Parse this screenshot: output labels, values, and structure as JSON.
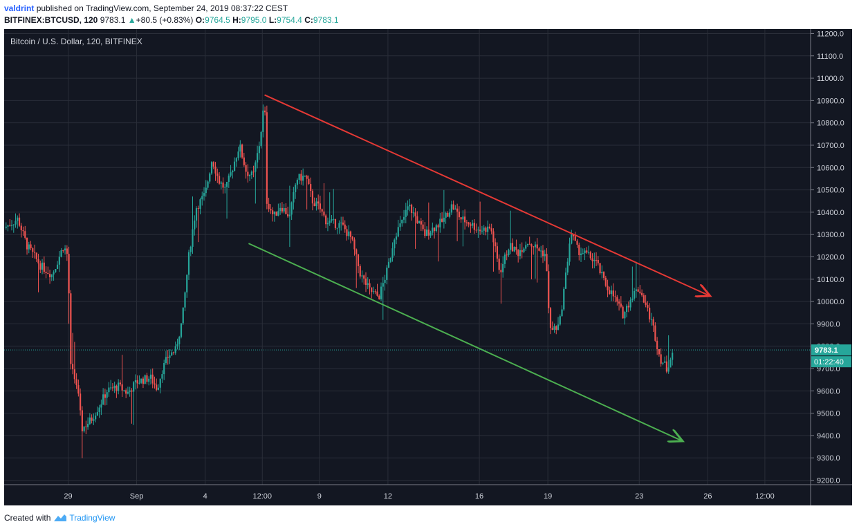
{
  "header": {
    "author": "valdrint",
    "published_text": "published on TradingView.com, September 24, 2019 08:37:22 CEST",
    "symbol": "BITFINEX:BTCUSD, 120",
    "last": "9783.1",
    "change": "+80.5 (+0.83%)",
    "open_label": "O:",
    "open": "9764.5",
    "high_label": "H:",
    "high": "9795.0",
    "low_label": "L:",
    "low": "9754.4",
    "close_label": "C:",
    "close": "9783.1"
  },
  "footer": {
    "created_with": "Created with",
    "brand": "TradingView"
  },
  "colors": {
    "background": "#131722",
    "grid": "#2a2e39",
    "up": "#26a69a",
    "down": "#ef5350",
    "upper_trend": "#e53935",
    "lower_trend": "#4caf50",
    "axis_text": "#d1d4dc",
    "price_tag": "#26a69a"
  },
  "chart_data": {
    "type": "candlestick",
    "title": "Bitcoin / U.S. Dollar, 120, BITFINEX",
    "y_ticks": [
      9200,
      9300,
      9400,
      9500,
      9600,
      9700,
      9800,
      9900,
      10000,
      10100,
      10200,
      10300,
      10400,
      10500,
      10600,
      10700,
      10800,
      10900,
      11000,
      11100,
      11200
    ],
    "x_ticks": [
      {
        "label": "29",
        "day": -3
      },
      {
        "label": "Sep",
        "day": 0
      },
      {
        "label": "4",
        "day": 3
      },
      {
        "label": "12:00",
        "day": 5.5
      },
      {
        "label": "9",
        "day": 8
      },
      {
        "label": "12",
        "day": 11
      },
      {
        "label": "16",
        "day": 15
      },
      {
        "label": "19",
        "day": 18
      },
      {
        "label": "23",
        "day": 22
      },
      {
        "label": "26",
        "day": 25
      },
      {
        "label": "12:00",
        "day": 27.5
      }
    ],
    "ylim": [
      9180,
      11220
    ],
    "xlim": [
      -5.8,
      29.5
    ],
    "last_price": "9783.1",
    "countdown": "01:22:40",
    "price_path": [
      [
        -5.8,
        10330
      ],
      [
        -5.2,
        10370
      ],
      [
        -4.8,
        10250
      ],
      [
        -4.2,
        10160
      ],
      [
        -3.7,
        10120
      ],
      [
        -3.2,
        10250
      ],
      [
        -3.0,
        10200
      ],
      [
        -2.9,
        9710
      ],
      [
        -2.6,
        9620
      ],
      [
        -2.4,
        9430
      ],
      [
        -2.0,
        9470
      ],
      [
        -1.6,
        9540
      ],
      [
        -1.3,
        9600
      ],
      [
        -0.8,
        9620
      ],
      [
        -0.4,
        9590
      ],
      [
        0.0,
        9640
      ],
      [
        0.6,
        9660
      ],
      [
        0.9,
        9610
      ],
      [
        1.1,
        9690
      ],
      [
        1.4,
        9760
      ],
      [
        1.7,
        9780
      ],
      [
        2.0,
        9920
      ],
      [
        2.3,
        10220
      ],
      [
        2.6,
        10420
      ],
      [
        3.0,
        10480
      ],
      [
        3.3,
        10640
      ],
      [
        3.6,
        10540
      ],
      [
        3.9,
        10500
      ],
      [
        4.2,
        10600
      ],
      [
        4.5,
        10700
      ],
      [
        4.8,
        10580
      ],
      [
        5.1,
        10560
      ],
      [
        5.4,
        10720
      ],
      [
        5.6,
        10910
      ],
      [
        5.7,
        10450
      ],
      [
        6.0,
        10380
      ],
      [
        6.3,
        10430
      ],
      [
        6.7,
        10380
      ],
      [
        7.0,
        10550
      ],
      [
        7.4,
        10560
      ],
      [
        7.7,
        10450
      ],
      [
        8.0,
        10420
      ],
      [
        8.3,
        10360
      ],
      [
        8.6,
        10350
      ],
      [
        9.0,
        10340
      ],
      [
        9.4,
        10280
      ],
      [
        9.8,
        10120
      ],
      [
        10.2,
        10050
      ],
      [
        10.6,
        10020
      ],
      [
        11.0,
        10150
      ],
      [
        11.3,
        10300
      ],
      [
        11.6,
        10350
      ],
      [
        11.9,
        10430
      ],
      [
        12.2,
        10380
      ],
      [
        12.6,
        10300
      ],
      [
        13.0,
        10330
      ],
      [
        13.4,
        10360
      ],
      [
        13.8,
        10430
      ],
      [
        14.2,
        10370
      ],
      [
        14.6,
        10350
      ],
      [
        15.0,
        10320
      ],
      [
        15.5,
        10330
      ],
      [
        15.9,
        10130
      ],
      [
        16.3,
        10250
      ],
      [
        16.7,
        10220
      ],
      [
        17.1,
        10270
      ],
      [
        17.5,
        10240
      ],
      [
        17.9,
        10210
      ],
      [
        18.1,
        9870
      ],
      [
        18.5,
        9890
      ],
      [
        18.8,
        10130
      ],
      [
        19.0,
        10310
      ],
      [
        19.3,
        10230
      ],
      [
        19.7,
        10210
      ],
      [
        20.1,
        10180
      ],
      [
        20.5,
        10080
      ],
      [
        20.9,
        10020
      ],
      [
        21.3,
        9940
      ],
      [
        21.7,
        10030
      ],
      [
        22.0,
        10060
      ],
      [
        22.3,
        9980
      ],
      [
        22.6,
        9890
      ],
      [
        22.9,
        9750
      ],
      [
        23.2,
        9700
      ],
      [
        23.5,
        9783
      ]
    ],
    "upper_trendline": {
      "from": [
        5.6,
        10925
      ],
      "to": [
        25.1,
        10025
      ]
    },
    "lower_trendline": {
      "from": [
        4.9,
        10260
      ],
      "to": [
        23.9,
        9375
      ]
    }
  }
}
